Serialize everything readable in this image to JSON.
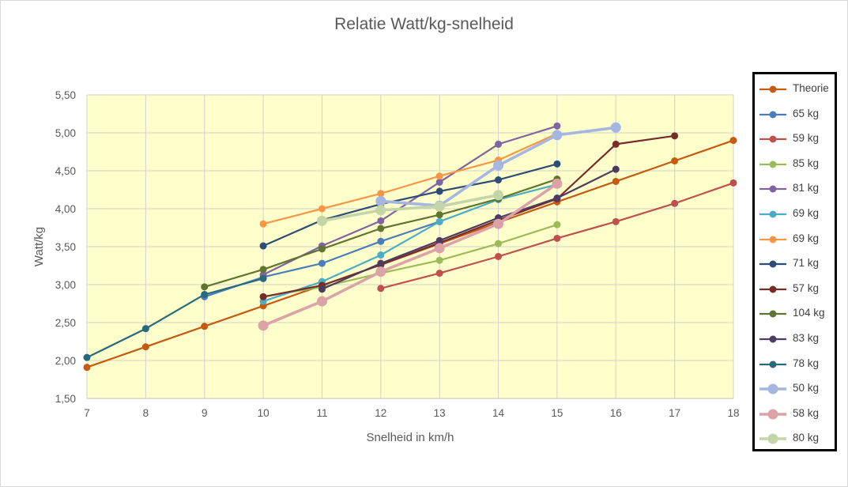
{
  "chart_data": {
    "type": "line",
    "title": "Relatie Watt/kg-snelheid",
    "xlabel": "Snelheid in km/h",
    "ylabel": "Watt/kg",
    "xlim": [
      7,
      18
    ],
    "ylim": [
      1.5,
      5.5
    ],
    "x_ticks": [
      "7",
      "8",
      "9",
      "10",
      "11",
      "12",
      "13",
      "14",
      "15",
      "16",
      "17",
      "18"
    ],
    "y_ticks": [
      "1,50",
      "2,00",
      "2,50",
      "3,00",
      "3,50",
      "4,00",
      "4,50",
      "5,00",
      "5,50"
    ],
    "grid": true,
    "legend_position": "right",
    "plot_background": "#ffffcc",
    "series": [
      {
        "name": "Theorie",
        "color": "#c55a11",
        "marker": 4.5,
        "width": 2.2,
        "points": [
          [
            7,
            1.91
          ],
          [
            8,
            2.18
          ],
          [
            9,
            2.45
          ],
          [
            10,
            2.72
          ],
          [
            11,
            2.99
          ],
          [
            12,
            3.26
          ],
          [
            13,
            3.54
          ],
          [
            14,
            3.82
          ],
          [
            15,
            4.09
          ],
          [
            16,
            4.36
          ],
          [
            17,
            4.63
          ],
          [
            18,
            4.9
          ]
        ]
      },
      {
        "name": "65 kg",
        "color": "#4a7ebb",
        "marker": 4.5,
        "width": 2.2,
        "points": [
          [
            9,
            2.84
          ],
          [
            10,
            3.1
          ],
          [
            11,
            3.28
          ],
          [
            12,
            3.57
          ],
          [
            13,
            3.83
          ]
        ]
      },
      {
        "name": "59 kg",
        "color": "#c0504d",
        "marker": 4.5,
        "width": 2.2,
        "points": [
          [
            12,
            2.95
          ],
          [
            13,
            3.15
          ],
          [
            14,
            3.37
          ],
          [
            15,
            3.61
          ],
          [
            16,
            3.83
          ],
          [
            17,
            4.07
          ],
          [
            18,
            4.34
          ]
        ]
      },
      {
        "name": "85 kg",
        "color": "#9bbb59",
        "marker": 4.5,
        "width": 2.2,
        "points": [
          [
            10,
            2.84
          ],
          [
            11,
            2.97
          ],
          [
            12,
            3.15
          ],
          [
            13,
            3.32
          ],
          [
            14,
            3.54
          ],
          [
            15,
            3.79
          ]
        ]
      },
      {
        "name": "81 kg",
        "color": "#8064a2",
        "marker": 4.5,
        "width": 2.2,
        "points": [
          [
            10,
            3.13
          ],
          [
            11,
            3.51
          ],
          [
            12,
            3.84
          ],
          [
            13,
            4.35
          ],
          [
            14,
            4.85
          ],
          [
            15,
            5.09
          ]
        ]
      },
      {
        "name": "69 kg",
        "color": "#4bacc6",
        "marker": 4.5,
        "width": 2.2,
        "points": [
          [
            10,
            2.78
          ],
          [
            11,
            3.04
          ],
          [
            12,
            3.39
          ],
          [
            13,
            3.83
          ],
          [
            14,
            4.12
          ],
          [
            15,
            4.32
          ]
        ]
      },
      {
        "name": "69 kg",
        "color": "#f79646",
        "marker": 4.5,
        "width": 2.2,
        "points": [
          [
            10,
            3.8
          ],
          [
            11,
            4.0
          ],
          [
            12,
            4.2
          ],
          [
            13,
            4.43
          ],
          [
            14,
            4.64
          ],
          [
            15,
            4.99
          ]
        ]
      },
      {
        "name": "71 kg",
        "color": "#2c4d75",
        "marker": 4.5,
        "width": 2.2,
        "points": [
          [
            10,
            3.51
          ],
          [
            11,
            3.85
          ],
          [
            12,
            4.06
          ],
          [
            13,
            4.23
          ],
          [
            14,
            4.38
          ],
          [
            15,
            4.59
          ]
        ]
      },
      {
        "name": "57 kg",
        "color": "#772c2a",
        "marker": 4.5,
        "width": 2.2,
        "points": [
          [
            10,
            2.84
          ],
          [
            11,
            2.99
          ],
          [
            12,
            3.26
          ],
          [
            13,
            3.55
          ],
          [
            14,
            3.85
          ],
          [
            15,
            4.13
          ],
          [
            16,
            4.85
          ],
          [
            17,
            4.96
          ]
        ]
      },
      {
        "name": "104 kg",
        "color": "#5f7530",
        "marker": 4.5,
        "width": 2.2,
        "points": [
          [
            9,
            2.97
          ],
          [
            10,
            3.2
          ],
          [
            11,
            3.47
          ],
          [
            12,
            3.74
          ],
          [
            13,
            3.92
          ],
          [
            14,
            4.13
          ],
          [
            15,
            4.39
          ]
        ]
      },
      {
        "name": "83 kg",
        "color": "#4d3b62",
        "marker": 4.5,
        "width": 2.2,
        "points": [
          [
            11,
            2.94
          ],
          [
            12,
            3.28
          ],
          [
            13,
            3.58
          ],
          [
            14,
            3.88
          ],
          [
            15,
            4.14
          ],
          [
            16,
            4.52
          ]
        ]
      },
      {
        "name": "78 kg",
        "color": "#276a7c",
        "marker": 4.5,
        "width": 2.2,
        "points": [
          [
            7,
            2.04
          ],
          [
            8,
            2.42
          ],
          [
            9,
            2.87
          ],
          [
            10,
            3.08
          ]
        ]
      },
      {
        "name": "50 kg",
        "color": "#a5b6e0",
        "marker": 6.5,
        "width": 3.6,
        "points": [
          [
            12,
            4.1
          ],
          [
            13,
            4.04
          ],
          [
            14,
            4.57
          ],
          [
            15,
            4.97
          ],
          [
            16,
            5.07
          ]
        ]
      },
      {
        "name": "58 kg",
        "color": "#dba3a8",
        "marker": 6.5,
        "width": 3.6,
        "points": [
          [
            10,
            2.46
          ],
          [
            11,
            2.78
          ],
          [
            12,
            3.17
          ],
          [
            13,
            3.48
          ],
          [
            14,
            3.8
          ],
          [
            15,
            4.33
          ]
        ]
      },
      {
        "name": "80 kg",
        "color": "#c4d6a8",
        "marker": 6.5,
        "width": 3.6,
        "points": [
          [
            11,
            3.84
          ],
          [
            12,
            3.98
          ],
          [
            13,
            4.03
          ],
          [
            14,
            4.18
          ]
        ]
      }
    ]
  }
}
